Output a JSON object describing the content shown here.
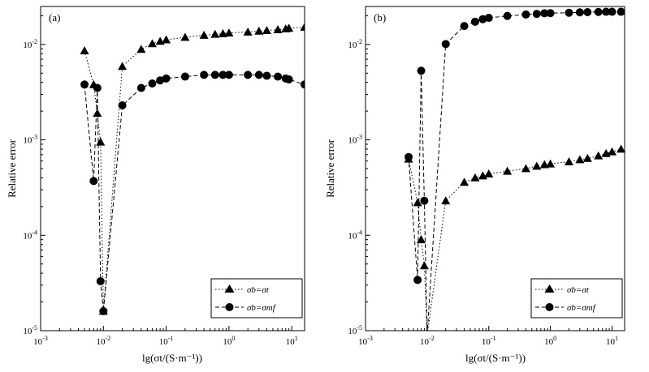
{
  "chart_data": [
    {
      "type": "line",
      "panel_label": "(a)",
      "xscale": "log",
      "yscale": "log",
      "xlabel": "lg(σt/(S·m⁻¹))",
      "ylabel": "Relative error",
      "xlim": [
        0.001,
        16
      ],
      "ylim": [
        1e-05,
        0.025
      ],
      "x_ticks": [
        {
          "value": 0.001,
          "label": "10^-3"
        },
        {
          "value": 0.01,
          "label": "10^-2"
        },
        {
          "value": 0.1,
          "label": "10^-1"
        },
        {
          "value": 1,
          "label": "10^0"
        },
        {
          "value": 10,
          "label": "10^1"
        }
      ],
      "y_ticks": [
        {
          "value": 1e-05,
          "label": "10^-5"
        },
        {
          "value": 0.0001,
          "label": "10^-4"
        },
        {
          "value": 0.001,
          "label": "10^-3"
        },
        {
          "value": 0.01,
          "label": "10^-2"
        }
      ],
      "legend_position": "bottom-right",
      "series": [
        {
          "name": "σb=σt",
          "marker": "triangle",
          "line_style": "dotted",
          "x": [
            0.005,
            0.007,
            0.008,
            0.009,
            0.01,
            0.02,
            0.04,
            0.06,
            0.08,
            0.1,
            0.2,
            0.4,
            0.6,
            0.8,
            1,
            2,
            3,
            4,
            6,
            8,
            9,
            16
          ],
          "y": [
            0.0086,
            0.0038,
            0.0019,
            0.00095,
            1.6e-05,
            0.0059,
            0.0089,
            0.0102,
            0.0108,
            0.0112,
            0.0119,
            0.0125,
            0.0128,
            0.013,
            0.0132,
            0.0135,
            0.0138,
            0.014,
            0.0143,
            0.0146,
            0.0148,
            0.0152
          ]
        },
        {
          "name": "σb=σmf",
          "marker": "circle",
          "line_style": "dashed",
          "x": [
            0.005,
            0.007,
            0.008,
            0.009,
            0.01,
            0.02,
            0.04,
            0.06,
            0.08,
            0.1,
            0.2,
            0.4,
            0.6,
            0.8,
            1,
            2,
            3,
            4,
            6,
            8,
            9,
            16
          ],
          "y": [
            0.0038,
            0.00037,
            0.0035,
            3.3e-05,
            1.6e-05,
            0.0023,
            0.0035,
            0.0039,
            0.0042,
            0.0044,
            0.0046,
            0.0048,
            0.0048,
            0.0048,
            0.0048,
            0.0048,
            0.0048,
            0.0047,
            0.0046,
            0.0044,
            0.0043,
            0.0038
          ]
        }
      ]
    },
    {
      "type": "line",
      "panel_label": "(b)",
      "xscale": "log",
      "yscale": "log",
      "xlabel": "lg(σt/(S·m⁻¹))",
      "ylabel": "Relative error",
      "xlim": [
        0.001,
        16
      ],
      "ylim": [
        1e-05,
        0.025
      ],
      "x_ticks": [
        {
          "value": 0.001,
          "label": "10^-3"
        },
        {
          "value": 0.01,
          "label": "10^-2"
        },
        {
          "value": 0.1,
          "label": "10^-1"
        },
        {
          "value": 1,
          "label": "10^0"
        },
        {
          "value": 10,
          "label": "10^1"
        }
      ],
      "y_ticks": [
        {
          "value": 1e-05,
          "label": "10^-5"
        },
        {
          "value": 0.0001,
          "label": "10^-4"
        },
        {
          "value": 0.001,
          "label": "10^-3"
        },
        {
          "value": 0.01,
          "label": "10^-2"
        }
      ],
      "legend_position": "bottom-right",
      "series": [
        {
          "name": "σb=σt",
          "marker": "triangle",
          "line_style": "dotted",
          "x": [
            0.005,
            0.007,
            0.008,
            0.009,
            0.01,
            0.02,
            0.04,
            0.06,
            0.08,
            0.1,
            0.2,
            0.4,
            0.6,
            0.8,
            1,
            2,
            3,
            4,
            6,
            8,
            10,
            14
          ],
          "y": [
            0.00063,
            0.00022,
            9e-05,
            4.8e-05,
            9e-06,
            0.00023,
            0.00036,
            0.0004,
            0.00042,
            0.00044,
            0.00047,
            0.0005,
            0.00053,
            0.00055,
            0.00056,
            0.00059,
            0.00062,
            0.00064,
            0.00068,
            0.00072,
            0.00075,
            0.0008
          ]
        },
        {
          "name": "σb=σmf",
          "marker": "circle",
          "line_style": "dashed",
          "x": [
            0.005,
            0.007,
            0.008,
            0.009,
            0.01,
            0.02,
            0.04,
            0.06,
            0.08,
            0.1,
            0.2,
            0.4,
            0.6,
            0.8,
            1,
            2,
            3,
            4,
            6,
            8,
            10,
            14
          ],
          "y": [
            0.00066,
            3.4e-05,
            0.0053,
            0.00023,
            9e-06,
            0.0101,
            0.0156,
            0.0173,
            0.0184,
            0.019,
            0.0199,
            0.0206,
            0.0209,
            0.0212,
            0.0213,
            0.0215,
            0.0217,
            0.0218,
            0.0219,
            0.022,
            0.022,
            0.022
          ]
        }
      ]
    }
  ]
}
